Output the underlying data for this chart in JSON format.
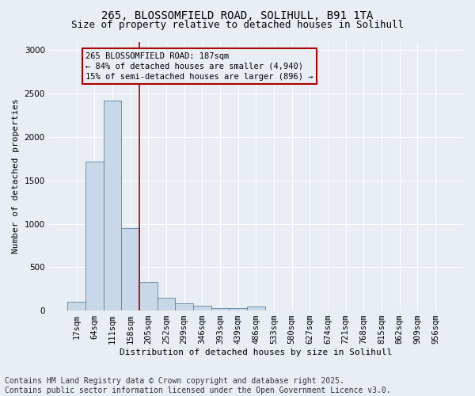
{
  "title_line1": "265, BLOSSOMFIELD ROAD, SOLIHULL, B91 1TA",
  "title_line2": "Size of property relative to detached houses in Solihull",
  "xlabel": "Distribution of detached houses by size in Solihull",
  "ylabel": "Number of detached properties",
  "categories": [
    "17sqm",
    "64sqm",
    "111sqm",
    "158sqm",
    "205sqm",
    "252sqm",
    "299sqm",
    "346sqm",
    "393sqm",
    "439sqm",
    "486sqm",
    "533sqm",
    "580sqm",
    "627sqm",
    "674sqm",
    "721sqm",
    "768sqm",
    "815sqm",
    "862sqm",
    "909sqm",
    "956sqm"
  ],
  "values": [
    100,
    1720,
    2420,
    950,
    330,
    150,
    80,
    55,
    30,
    30,
    50,
    5,
    5,
    5,
    2,
    2,
    2,
    2,
    2,
    2,
    2
  ],
  "bar_color": "#c8d8e8",
  "bar_edge_color": "#5b82a0",
  "vline_color": "#aa0000",
  "vline_x": 3.5,
  "annotation_text": "265 BLOSSOMFIELD ROAD: 187sqm\n← 84% of detached houses are smaller (4,940)\n15% of semi-detached houses are larger (896) →",
  "annotation_box_color": "#aa0000",
  "ylim": [
    0,
    3100
  ],
  "yticks": [
    0,
    500,
    1000,
    1500,
    2000,
    2500,
    3000
  ],
  "background_color": "#e8eef4",
  "grid_color": "#ffffff",
  "footnote": "Contains HM Land Registry data © Crown copyright and database right 2025.\nContains public sector information licensed under the Open Government Licence v3.0.",
  "footnote_fontsize": 7,
  "title1_fontsize": 10,
  "title2_fontsize": 9,
  "xlabel_fontsize": 8,
  "ylabel_fontsize": 8,
  "tick_fontsize": 7.5
}
